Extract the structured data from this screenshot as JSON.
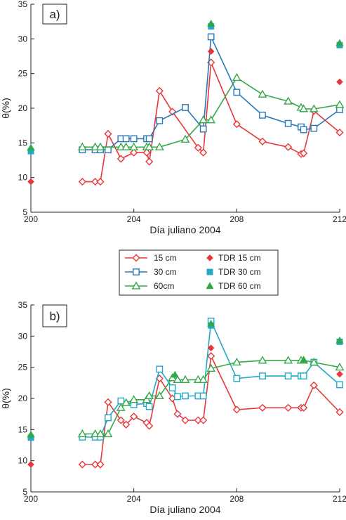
{
  "legend": {
    "items": [
      {
        "label": "15 cm",
        "kind": "line",
        "color": "#e8373a",
        "marker": "diamond"
      },
      {
        "label": "TDR 15 cm",
        "kind": "point",
        "color": "#e8373a",
        "marker": "diamond"
      },
      {
        "label": "30 cm",
        "kind": "line",
        "color": "#2878b8",
        "marker": "square"
      },
      {
        "label": "TDR 30 cm",
        "kind": "point",
        "color": "#23a9c8",
        "marker": "square"
      },
      {
        "label": "60cm",
        "kind": "line",
        "color": "#36a84a",
        "marker": "triangle"
      },
      {
        "label": "TDR 60 cm",
        "kind": "point",
        "color": "#2fa84a",
        "marker": "triangle"
      }
    ]
  },
  "chart_data": [
    {
      "type": "line",
      "panel_label": "a)",
      "xlabel": "Día juliano 2004",
      "ylabel": "θ(%)",
      "xlim": [
        200,
        212
      ],
      "ylim": [
        5,
        35
      ],
      "xticks": [
        200,
        204,
        208,
        212
      ],
      "yticks": [
        5,
        10,
        15,
        20,
        25,
        30,
        35
      ],
      "grid": false,
      "series": [
        {
          "name": "15 cm",
          "color": "#e8373a",
          "marker": "diamond",
          "x": [
            202,
            202.5,
            202.7,
            203,
            203.5,
            204,
            204.5,
            204.6,
            205,
            205.5,
            206.5,
            206.7,
            207,
            208,
            209,
            210,
            210.5,
            210.6,
            211,
            212
          ],
          "y": [
            9.4,
            9.4,
            9.4,
            16.3,
            12.7,
            13.6,
            13.6,
            12.3,
            22.5,
            19.5,
            14.3,
            13.6,
            26.6,
            17.7,
            15.2,
            14.4,
            13.4,
            13.5,
            19.6,
            16.5
          ]
        },
        {
          "name": "30 cm",
          "color": "#2878b8",
          "marker": "square",
          "x": [
            202,
            202.5,
            202.7,
            203,
            203.5,
            203.7,
            204,
            204.5,
            204.6,
            205,
            206,
            206.7,
            207,
            208,
            209,
            210,
            210.5,
            210.6,
            211,
            212
          ],
          "y": [
            14.0,
            14.0,
            14.0,
            14.0,
            15.6,
            15.6,
            15.6,
            15.6,
            15.6,
            18.2,
            20.1,
            17.0,
            30.3,
            22.3,
            19.0,
            17.8,
            17.3,
            16.9,
            17.1,
            19.8
          ]
        },
        {
          "name": "60cm",
          "color": "#36a84a",
          "marker": "triangle",
          "x": [
            202,
            202.5,
            202.7,
            203.5,
            203.7,
            204,
            204.5,
            204.6,
            205,
            206,
            206.7,
            207,
            208,
            209,
            210,
            210.5,
            210.6,
            211,
            212
          ],
          "y": [
            14.4,
            14.4,
            14.4,
            14.4,
            14.4,
            14.4,
            14.4,
            14.4,
            14.4,
            15.5,
            18.3,
            18.3,
            24.4,
            22.0,
            21.0,
            20.1,
            19.9,
            19.9,
            20.5
          ]
        }
      ],
      "points": [
        {
          "name": "TDR 15 cm",
          "color": "#e8373a",
          "marker": "diamond",
          "x": [
            200,
            207,
            212
          ],
          "y": [
            9.4,
            28.2,
            23.8
          ]
        },
        {
          "name": "TDR 30 cm",
          "color": "#23a9c8",
          "marker": "square",
          "x": [
            200,
            207,
            212
          ],
          "y": [
            13.8,
            31.8,
            29.1
          ]
        },
        {
          "name": "TDR 60 cm",
          "color": "#2fa84a",
          "marker": "triangle",
          "x": [
            200,
            207,
            212
          ],
          "y": [
            14.3,
            32.2,
            29.4
          ]
        }
      ]
    },
    {
      "type": "line",
      "panel_label": "b)",
      "xlabel": "Día juliano 2004",
      "ylabel": "θ(%)",
      "xlim": [
        200,
        212
      ],
      "ylim": [
        5,
        35
      ],
      "xticks": [
        200,
        204,
        208,
        212
      ],
      "yticks": [
        5,
        10,
        15,
        20,
        25,
        30,
        35
      ],
      "grid": false,
      "series": [
        {
          "name": "15 cm",
          "color": "#e8373a",
          "marker": "diamond",
          "x": [
            202,
            202.5,
            202.7,
            203,
            203.5,
            203.7,
            204,
            204.5,
            204.6,
            205,
            205.5,
            205.7,
            206,
            206.5,
            206.7,
            207,
            208,
            209,
            210,
            210.5,
            210.6,
            211,
            212
          ],
          "y": [
            9.4,
            9.4,
            9.4,
            19.4,
            16.5,
            15.8,
            17.1,
            16.1,
            15.6,
            23.2,
            20.0,
            17.5,
            16.5,
            16.5,
            16.5,
            26.8,
            18.2,
            18.5,
            18.5,
            18.5,
            18.5,
            22.1,
            17.8
          ]
        },
        {
          "name": "30 cm",
          "color": "#23a9c8",
          "marker": "square",
          "x": [
            202,
            202.5,
            202.7,
            203,
            203.5,
            204,
            204.5,
            204.6,
            205,
            205.5,
            205.7,
            206,
            206.5,
            206.7,
            207,
            208,
            209,
            210,
            210.5,
            210.6,
            211,
            212
          ],
          "y": [
            13.8,
            13.8,
            13.8,
            16.9,
            19.6,
            19.0,
            19.2,
            18.7,
            24.7,
            21.7,
            20.3,
            20.4,
            20.4,
            20.4,
            32.4,
            23.2,
            23.6,
            23.6,
            23.6,
            23.6,
            25.8,
            22.2
          ]
        },
        {
          "name": "60cm",
          "color": "#36a84a",
          "marker": "triangle",
          "x": [
            202,
            202.5,
            202.7,
            203,
            203.5,
            203.7,
            204,
            204.5,
            204.6,
            205,
            205.5,
            205.7,
            206,
            206.5,
            206.7,
            207,
            208,
            209,
            210,
            210.5,
            210.6,
            211,
            212
          ],
          "y": [
            14.3,
            14.3,
            14.3,
            14.3,
            18.5,
            19.3,
            19.8,
            19.8,
            20.4,
            20.4,
            23.3,
            23.0,
            23.0,
            23.0,
            23.0,
            24.8,
            25.8,
            26.1,
            26.1,
            26.1,
            26.1,
            25.8,
            25.0
          ]
        }
      ],
      "points": [
        {
          "name": "TDR 15 cm",
          "color": "#e8373a",
          "marker": "diamond",
          "x": [
            200,
            207,
            212
          ],
          "y": [
            9.4,
            28.1,
            23.9
          ]
        },
        {
          "name": "TDR 30 cm",
          "color": "#23a9c8",
          "marker": "square",
          "x": [
            200,
            207,
            212
          ],
          "y": [
            13.7,
            31.7,
            29.1
          ]
        },
        {
          "name": "TDR 60 cm",
          "color": "#2fa84a",
          "marker": "triangle",
          "x": [
            200,
            205.6,
            207,
            210.6,
            212
          ],
          "y": [
            14.2,
            23.8,
            32.0,
            26.2,
            29.3
          ]
        }
      ]
    }
  ]
}
